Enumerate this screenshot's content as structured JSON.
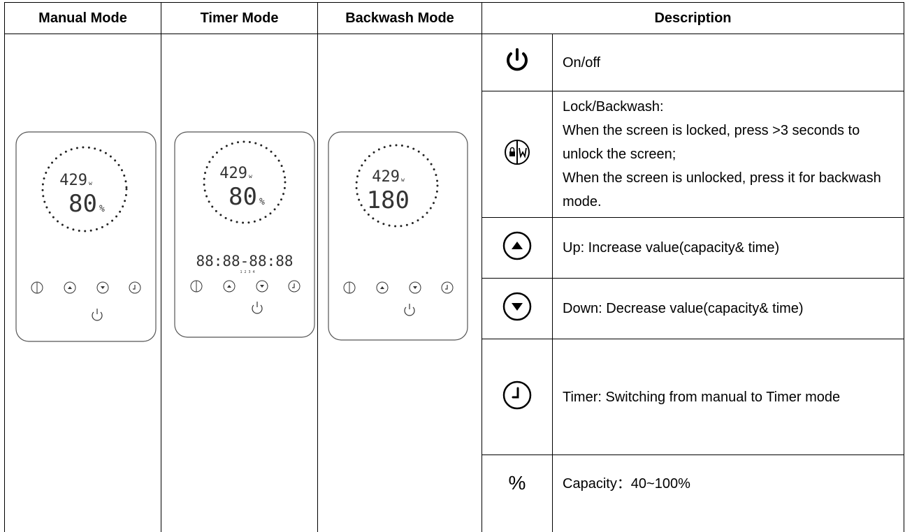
{
  "header": {
    "columns": [
      "Manual Mode",
      "Timer Mode",
      "Backwash Mode",
      "Description"
    ]
  },
  "devices": [
    {
      "display_top": "429",
      "display_top_unit": "w",
      "display_bottom": "80",
      "display_bottom_unit": "%"
    },
    {
      "display_top": "429",
      "display_top_unit": "w",
      "display_bottom": "80",
      "display_bottom_unit": "%",
      "timer": "88:88-88:88",
      "timer_slots": "1 2 3 4"
    },
    {
      "display_top": "429",
      "display_top_unit": "w",
      "display_bottom": "180"
    }
  ],
  "rows": [
    {
      "icon": "power",
      "text": "On/off"
    },
    {
      "icon": "lock",
      "lines": [
        "Lock/Backwash:",
        "When the screen is locked, press >3 seconds to unlock the screen;",
        "When the screen is unlocked, press it for backwash mode."
      ]
    },
    {
      "icon": "up",
      "text": "Up: Increase value(capacity& time)"
    },
    {
      "icon": "down",
      "text": "Down: Decrease value(capacity& time)"
    },
    {
      "icon": "clock",
      "text": "Timer: Switching from manual to Timer mode"
    },
    {
      "symbol": "%",
      "text": "Capacity：40~100%"
    }
  ]
}
